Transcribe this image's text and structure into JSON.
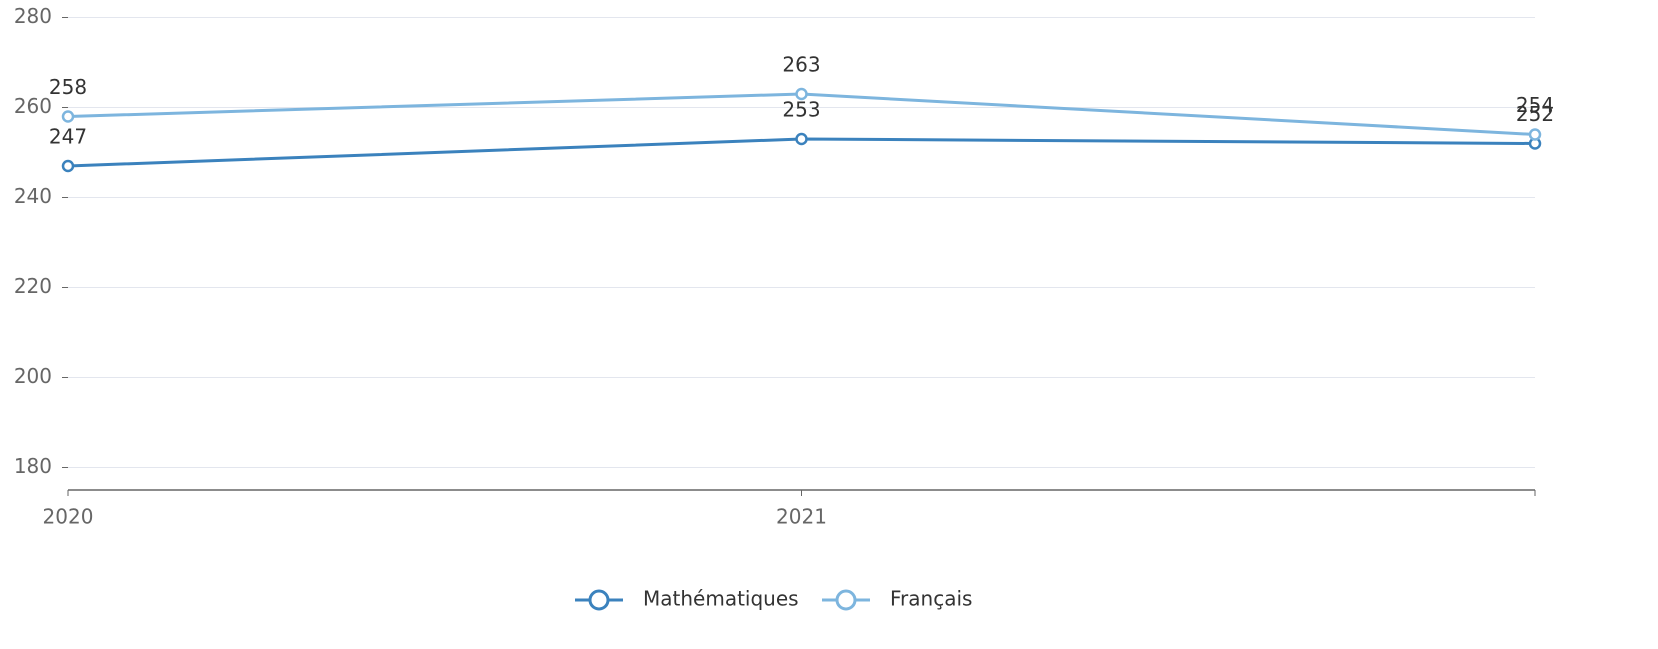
{
  "chart_data": {
    "type": "line",
    "categories": [
      "2020",
      "2021",
      null
    ],
    "series": [
      {
        "name": "Mathématiques",
        "color": "#3b82bd",
        "values": [
          247,
          253,
          252
        ]
      },
      {
        "name": "Français",
        "color": "#7db5de",
        "values": [
          258,
          263,
          254
        ]
      }
    ],
    "ylim": [
      175,
      280
    ],
    "yticks": [
      180,
      200,
      220,
      240,
      260,
      280
    ],
    "grid": true,
    "legend": "bottom"
  }
}
